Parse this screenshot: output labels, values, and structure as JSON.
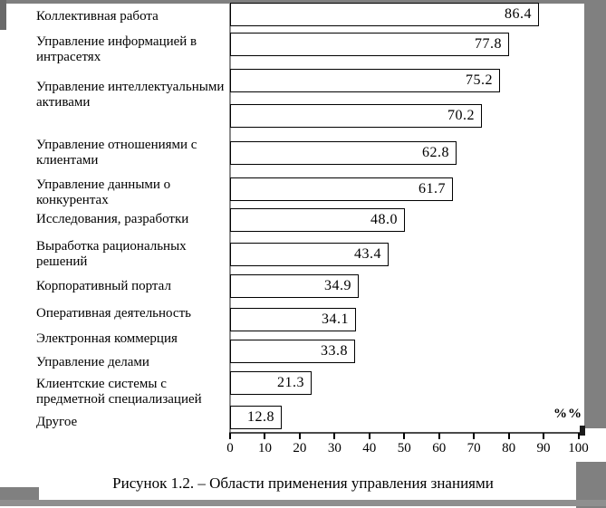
{
  "figure": {
    "caption": "Рисунок 1.2. – Области применения управления знаниями"
  },
  "chart_data": {
    "type": "bar",
    "orientation": "horizontal",
    "title": "Области применения управления знаниями",
    "xlim": [
      0,
      100
    ],
    "grid": false,
    "x_axis": {
      "ticks": [
        "0",
        "10",
        "20",
        "30",
        "40",
        "50",
        "60",
        "70",
        "80",
        "90",
        "100"
      ],
      "unit_label": "%%"
    },
    "bars": [
      {
        "label": "Коллективная работа",
        "value": 86.4,
        "value_label": "86.4"
      },
      {
        "label": "Управление информацией в интрасетях",
        "value": 77.8,
        "value_label": "77.8"
      },
      {
        "label": "Управление интеллектуальными активами",
        "value": 75.2,
        "value_label": "75.2"
      },
      {
        "label": "Управление отношениями с клиентами",
        "value": 70.2,
        "value_label": "70.2"
      },
      {
        "label": "Управление данными о конкурентах",
        "value": 62.8,
        "value_label": "62.8"
      },
      {
        "label": "Исследования, разработки",
        "value": 61.7,
        "value_label": "61.7"
      },
      {
        "label": "Выработка рациональных решений",
        "value": 48.0,
        "value_label": "48.0"
      },
      {
        "label": "Корпоративный портал",
        "value": 43.4,
        "value_label": "43.4"
      },
      {
        "label": "Оперативная деятельность",
        "value": 34.9,
        "value_label": "34.9"
      },
      {
        "label": "Электронная коммерция",
        "value": 34.1,
        "value_label": "34.1"
      },
      {
        "label": "Управление делами",
        "value": 33.8,
        "value_label": "33.8"
      },
      {
        "label": "Клиентские системы с предметной специализацией",
        "value": 21.3,
        "value_label": "21.3"
      },
      {
        "label": "Другое",
        "value": 12.8,
        "value_label": "12.8"
      }
    ]
  }
}
